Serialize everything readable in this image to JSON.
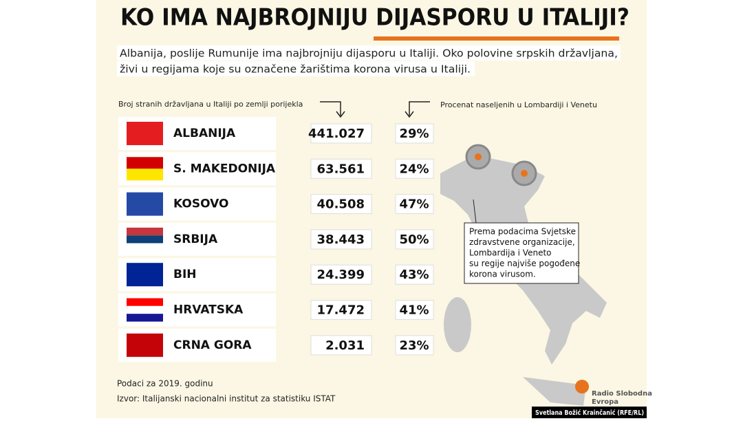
{
  "header": {
    "title": "KO IMA NAJBROJNIJU DIJASPORU U ITALIJI?",
    "subtitle": [
      "Albanija, poslije Rumunije ima najbrojniju dijasporu u Italiji. Oko polovine srpskih državljana,",
      "živi u regijama koje su označene žarištima korona virusa u Italiji."
    ]
  },
  "table": {
    "column_left": "Broj stranih državljana u Italiji po zemlji porijekla",
    "column_right": "Procenat naseljenih u Lombardiji i Venetu",
    "rows": [
      {
        "country": "ALBANIJA",
        "count": "441.027",
        "percent": "29%"
      },
      {
        "country": "S. MAKEDONIJA",
        "count": "63.561",
        "percent": "24%"
      },
      {
        "country": "KOSOVO",
        "count": "40.508",
        "percent": "47%"
      },
      {
        "country": "SRBIJA",
        "count": "38.443",
        "percent": "50%"
      },
      {
        "country": "BIH",
        "count": "24.399",
        "percent": "43%"
      },
      {
        "country": "HRVATSKA",
        "count": "17.472",
        "percent": "41%"
      },
      {
        "country": "CRNA GORA",
        "count": "2.031",
        "percent": "23%"
      }
    ]
  },
  "callout": [
    "Prema podacima Svjetske",
    "zdravstvene organizacije,",
    "Lombardija i Veneto",
    "su regije najviše pogođene",
    "korona virusom."
  ],
  "footer": {
    "note": "Podaci za 2019. godinu",
    "source": "Izvor: Italijanski nacionalni institut za statistiku ISTAT",
    "credit": "Svetlana Božić Krainčanić (RFE/RL)",
    "logo": [
      "Radio Slobodna",
      "Evropa"
    ]
  }
}
